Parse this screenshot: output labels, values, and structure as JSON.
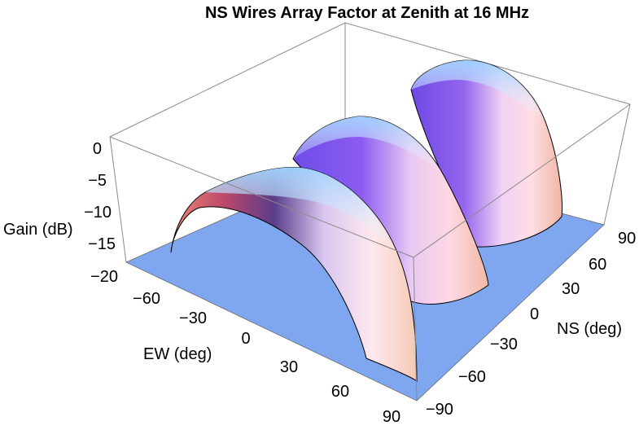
{
  "chart_data": {
    "type": "surface3d",
    "title": "NS Wires Array Factor at Zenith at 16 MHz",
    "zlabel": "Gain (dB)",
    "xlabel": "EW (deg)",
    "ylabel": "NS (deg)",
    "z_ticks": [
      "0",
      "−5",
      "−10",
      "−15",
      "−20"
    ],
    "x_ticks": [
      "−60",
      "−30",
      "0",
      "30",
      "60",
      "90"
    ],
    "y_ticks": [
      "90",
      "60",
      "30",
      "0",
      "−30",
      "−60",
      "−90"
    ],
    "x_range": [
      -90,
      90
    ],
    "y_range": [
      -90,
      90
    ],
    "z_range": [
      -20,
      0
    ],
    "floor_level_db": -20,
    "surface": {
      "description_units": "Gain (dB) vs EW (deg), NS (deg)",
      "lobes": [
        {
          "ns_center_deg": -60,
          "ns_half_width_deg": 28,
          "peak_gain_db": 0
        },
        {
          "ns_center_deg": 0,
          "ns_half_width_deg": 28,
          "peak_gain_db": 0
        },
        {
          "ns_center_deg": 60,
          "ns_half_width_deg": 28,
          "peak_gain_db": 0
        }
      ],
      "ew_half_width_deg": 90
    },
    "grid": false,
    "colors": {
      "floor": "#7fa7ef",
      "box": "#888888",
      "lobe_warm": "#d9706a",
      "lobe_mid": "#7a4fe0",
      "lobe_light": "#ffdce0",
      "lobe_top": "#a8d8ff"
    }
  }
}
